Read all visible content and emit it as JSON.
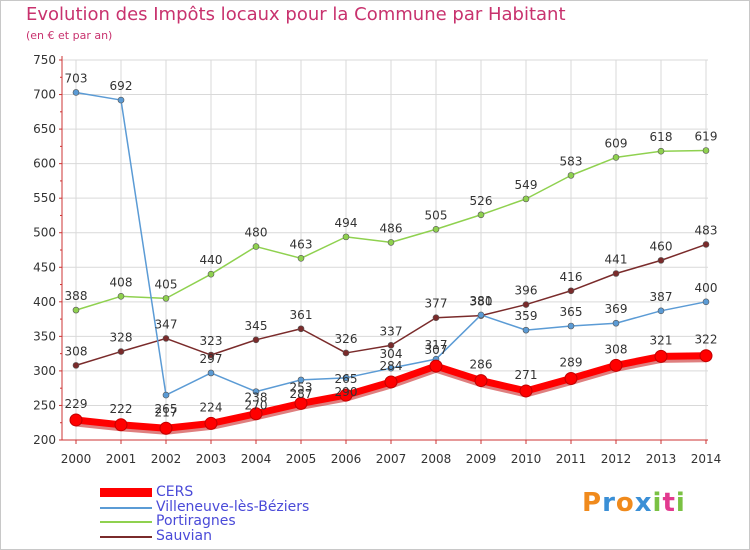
{
  "header": {
    "title": "Evolution des Impôts locaux pour la Commune par Habitant",
    "subtitle": "(en € et par an)"
  },
  "logo": {
    "text": "Proxiti"
  },
  "colors": {
    "title": "#c8326e",
    "legend_text": "#4a4ad8",
    "axis_text": "#333333",
    "cers": "#ff0000",
    "villeneuve": "#5b9bd5",
    "portiragnes": "#8fd14f",
    "sauvian": "#7a2b2b"
  },
  "chart_data": {
    "type": "line",
    "title": "Evolution des Impôts locaux pour la Commune par Habitant",
    "subtitle": "(en € et par an)",
    "xlabel": "",
    "ylabel": "",
    "x": [
      2000,
      2001,
      2002,
      2003,
      2004,
      2005,
      2006,
      2007,
      2008,
      2009,
      2010,
      2011,
      2012,
      2013,
      2014
    ],
    "ylim": [
      200,
      750
    ],
    "yticks": [
      200,
      250,
      300,
      350,
      400,
      450,
      500,
      550,
      600,
      650,
      700,
      750
    ],
    "grid": true,
    "legend_position": "bottom-left",
    "series": [
      {
        "name": "CERS",
        "color": "#ff0000",
        "values": [
          229,
          222,
          217,
          224,
          238,
          253,
          265,
          284,
          307,
          286,
          271,
          289,
          308,
          321,
          322
        ]
      },
      {
        "name": "Villeneuve-lès-Béziers",
        "color": "#5b9bd5",
        "values": [
          703,
          692,
          265,
          297,
          270,
          287,
          290,
          304,
          317,
          381,
          359,
          365,
          369,
          387,
          400
        ]
      },
      {
        "name": "Portiragnes",
        "color": "#8fd14f",
        "values": [
          388,
          408,
          405,
          440,
          480,
          463,
          494,
          486,
          505,
          526,
          549,
          583,
          609,
          618,
          619
        ]
      },
      {
        "name": "Sauvian",
        "color": "#7a2b2b",
        "values": [
          308,
          328,
          347,
          323,
          345,
          361,
          326,
          337,
          377,
          380,
          396,
          416,
          441,
          460,
          483
        ]
      }
    ]
  }
}
